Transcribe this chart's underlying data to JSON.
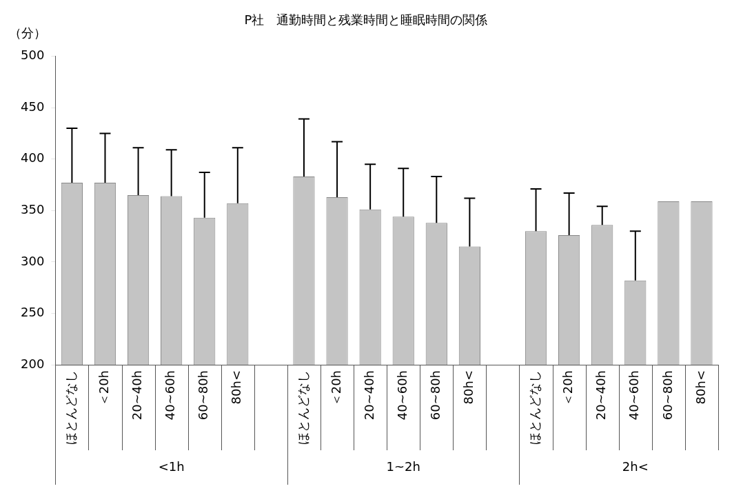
{
  "chart_data": {
    "type": "bar",
    "title": "P社　通勤時間と残業時間と睡眠時間の関係",
    "ylabel": "（分）",
    "categories": [
      "ほとんどなし",
      "＜20h",
      "20~40h",
      "40~60h",
      "60~80h",
      "80h<",
      null,
      "ほとんどなし",
      "＜20h",
      "20~40h",
      "40~60h",
      "60~80h",
      "80h<",
      null,
      "ほとんどなし",
      "＜20h",
      "20~40h",
      "40~60h",
      "60~80h",
      "80h<"
    ],
    "values": [
      377,
      377,
      365,
      364,
      343,
      357,
      null,
      383,
      363,
      351,
      344,
      338,
      315,
      null,
      330,
      326,
      336,
      282,
      359,
      359
    ],
    "errors": [
      [
        377,
        430
      ],
      [
        377,
        425
      ],
      [
        365,
        411
      ],
      [
        364,
        409
      ],
      [
        343,
        387
      ],
      [
        357,
        411
      ],
      null,
      [
        383,
        439
      ],
      [
        363,
        417
      ],
      [
        351,
        395
      ],
      [
        344,
        391
      ],
      [
        338,
        383
      ],
      [
        315,
        362
      ],
      null,
      [
        330,
        371
      ],
      [
        326,
        367
      ],
      [
        336,
        354
      ],
      [
        282,
        330
      ],
      null,
      null
    ],
    "color": "#c4c4c4",
    "ylim": [
      200,
      500
    ],
    "yticks": [
      200,
      250,
      300,
      350,
      400,
      450,
      500
    ],
    "grid": false,
    "annotations": [
      "<1h",
      "1~2h",
      "2h<"
    ]
  }
}
